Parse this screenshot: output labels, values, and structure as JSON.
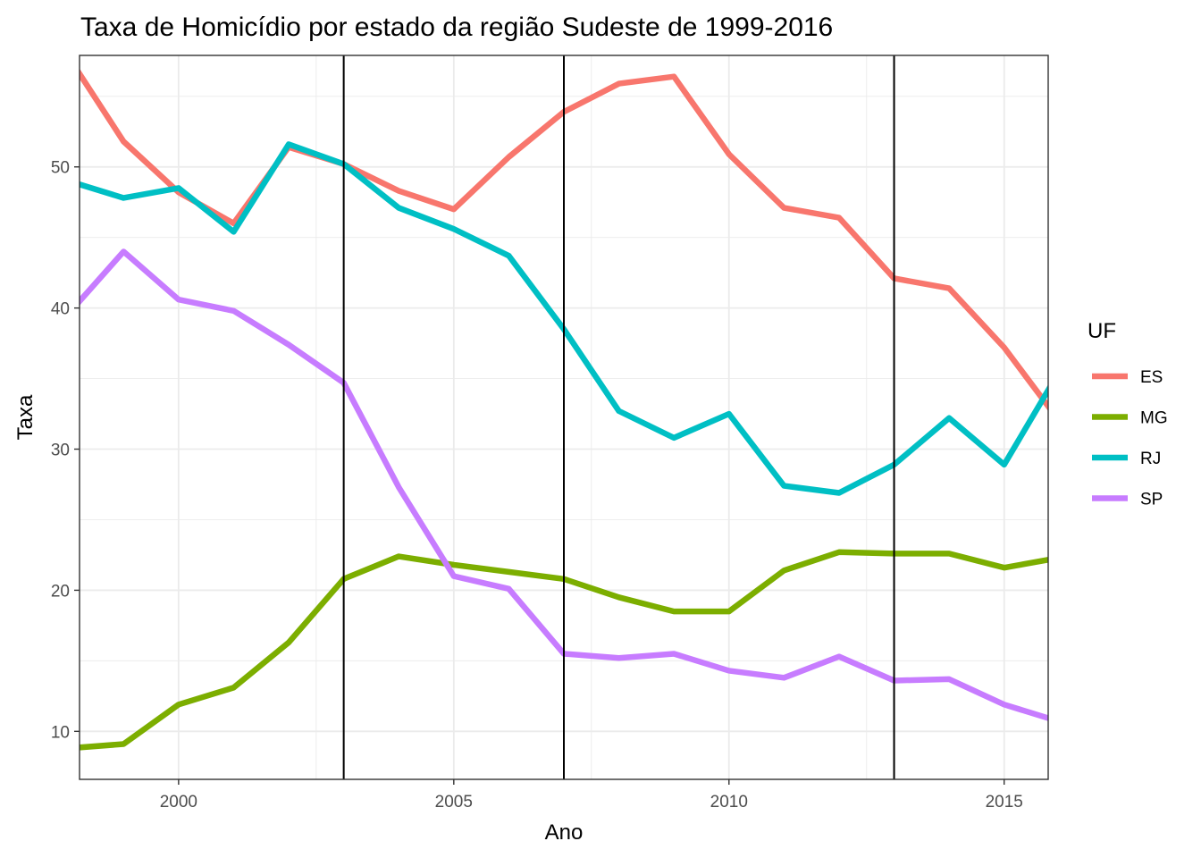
{
  "chart_data": {
    "type": "line",
    "title": "Taxa de Homicídio por estado da região Sudeste de 1999-2016",
    "xlabel": "Ano",
    "ylabel": "Taxa",
    "xlim": [
      1998.2,
      2015.8
    ],
    "ylim": [
      6.6,
      57.9
    ],
    "x_ticks": [
      2000,
      2005,
      2010,
      2015
    ],
    "y_ticks": [
      10,
      20,
      30,
      40,
      50
    ],
    "grid": true,
    "legend_title": "UF",
    "legend_position": "right",
    "vertical_lines": [
      2003,
      2007,
      2013
    ],
    "x": [
      1998,
      1999,
      2000,
      2001,
      2002,
      2003,
      2004,
      2005,
      2006,
      2007,
      2008,
      2009,
      2010,
      2011,
      2012,
      2013,
      2014,
      2015,
      2016
    ],
    "series": [
      {
        "name": "ES",
        "color": "#F8766D",
        "values": [
          57.8,
          51.8,
          48.2,
          46.0,
          51.4,
          50.2,
          48.3,
          47.0,
          50.7,
          53.9,
          55.9,
          56.4,
          50.9,
          47.1,
          46.4,
          42.1,
          41.4,
          37.2,
          32.0
        ]
      },
      {
        "name": "MG",
        "color": "#7CAE00",
        "values": [
          8.8,
          9.1,
          11.9,
          13.1,
          16.3,
          20.8,
          22.4,
          21.8,
          21.3,
          20.8,
          19.5,
          18.5,
          18.5,
          21.4,
          22.7,
          22.6,
          22.6,
          21.6,
          22.3
        ]
      },
      {
        "name": "RJ",
        "color": "#00BFC4",
        "values": [
          49.0,
          47.8,
          48.5,
          45.4,
          51.6,
          50.2,
          47.1,
          45.6,
          43.7,
          38.5,
          32.7,
          30.8,
          32.5,
          27.4,
          26.9,
          28.9,
          32.2,
          28.9,
          35.5
        ]
      },
      {
        "name": "SP",
        "color": "#C77CFF",
        "values": [
          39.6,
          44.0,
          40.6,
          39.8,
          37.4,
          34.7,
          27.3,
          21.0,
          20.1,
          15.5,
          15.2,
          15.5,
          14.3,
          13.8,
          15.3,
          13.6,
          13.7,
          11.9,
          10.7
        ]
      }
    ]
  }
}
